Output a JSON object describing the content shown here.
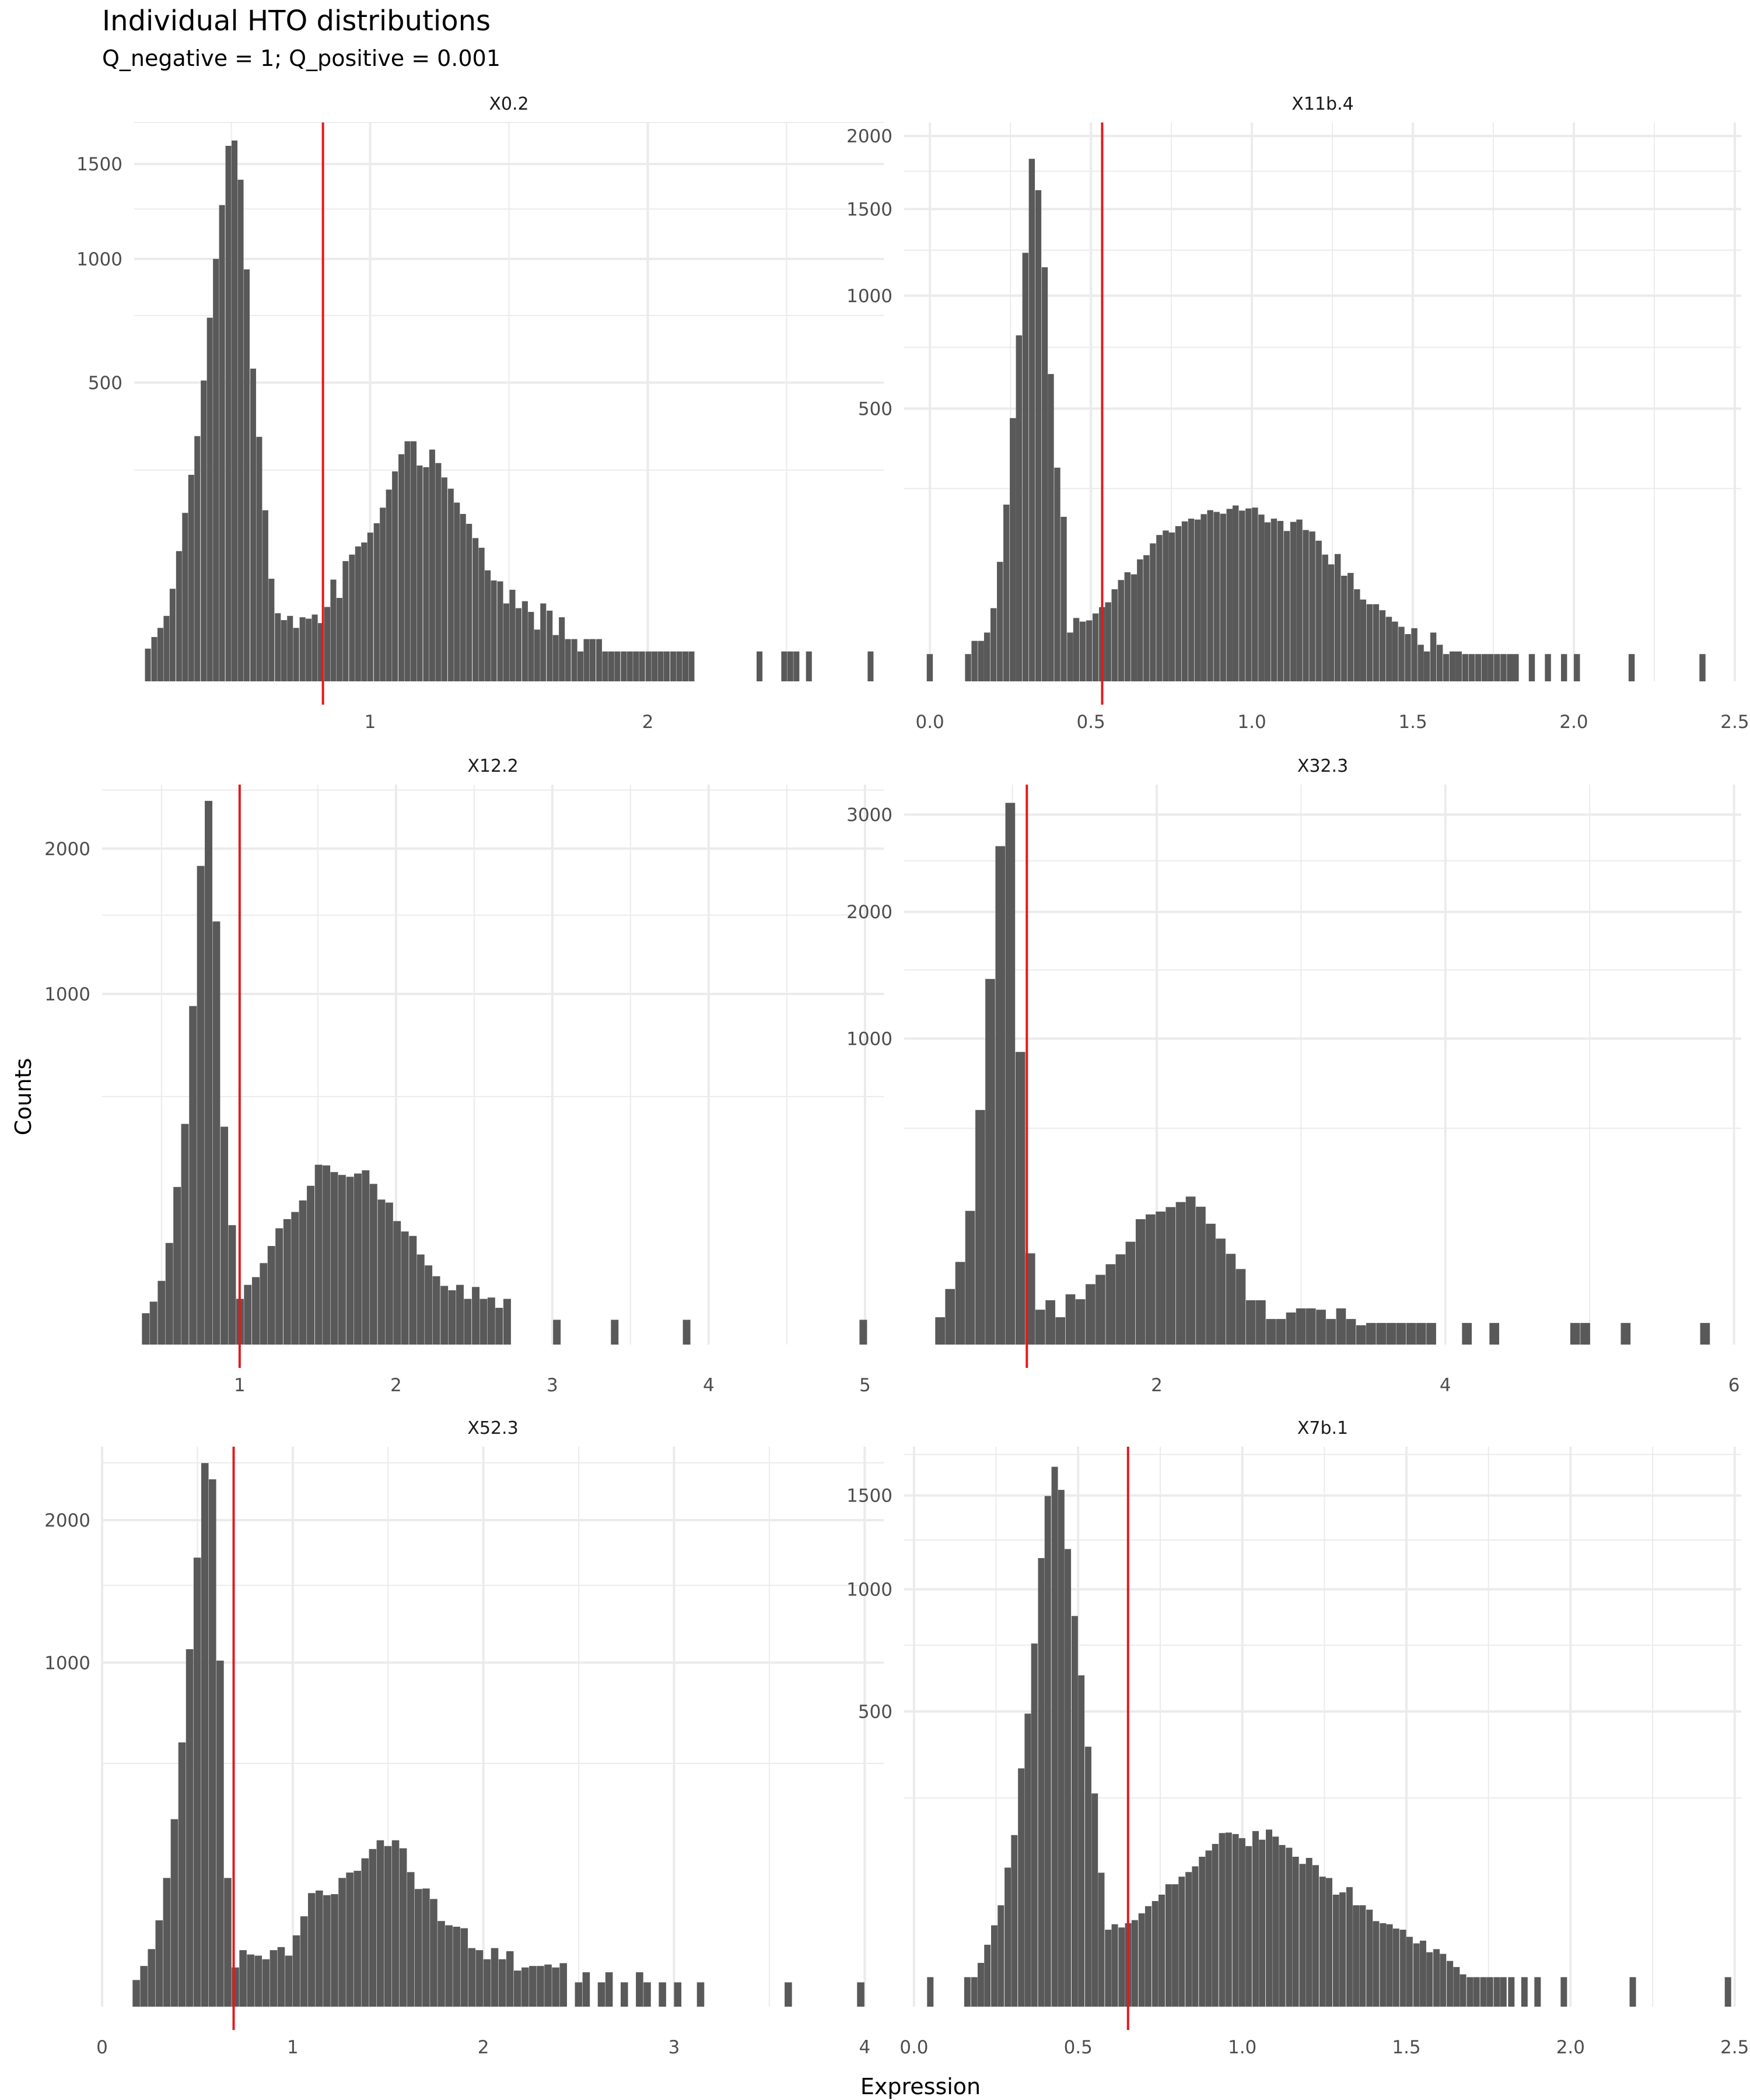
{
  "title": "Individual HTO distributions",
  "subtitle": "Q_negative = 1; Q_positive = 0.001",
  "xlabel": "Expression",
  "ylabel": "Counts",
  "colors": {
    "bar": "#595959",
    "threshold": "#e31a1c",
    "grid": "#ebebeb",
    "text": "#4d4d4d"
  },
  "chart_data": [
    {
      "type": "bar",
      "title": "X0.2",
      "scale": "sqrt",
      "xlim": [
        0.15,
        2.85
      ],
      "ylim": [
        0,
        1750
      ],
      "xticks": [
        1,
        2
      ],
      "yticks": [
        500,
        1000,
        1500
      ],
      "binwidth": 0.0222,
      "threshold": 0.83,
      "x": [
        0.2,
        0.223,
        0.245,
        0.267,
        0.289,
        0.312,
        0.334,
        0.356,
        0.378,
        0.401,
        0.423,
        0.445,
        0.467,
        0.49,
        0.512,
        0.534,
        0.556,
        0.579,
        0.601,
        0.623,
        0.645,
        0.668,
        0.69,
        0.712,
        0.734,
        0.757,
        0.779,
        0.801,
        0.823,
        0.846,
        0.868,
        0.89,
        0.912,
        0.935,
        0.957,
        0.979,
        1.001,
        1.024,
        1.046,
        1.068,
        1.09,
        1.113,
        1.135,
        1.157,
        1.179,
        1.202,
        1.224,
        1.246,
        1.268,
        1.291,
        1.313,
        1.335,
        1.357,
        1.38,
        1.402,
        1.424,
        1.446,
        1.469,
        1.491,
        1.513,
        1.535,
        1.558,
        1.58,
        1.602,
        1.624,
        1.647,
        1.669,
        1.691,
        1.713,
        1.736,
        1.758,
        1.78,
        1.802,
        1.825,
        1.847,
        1.869,
        1.891,
        1.914,
        1.936,
        1.958,
        1.98,
        2.003,
        2.025,
        2.047,
        2.069,
        2.092,
        2.114,
        2.136,
        2.158,
        2.403,
        2.492,
        2.514,
        2.536,
        2.581,
        2.803
      ],
      "values": [
        6,
        11,
        16,
        24,
        48,
        95,
        159,
        239,
        337,
        507,
        741,
        1000,
        1271,
        1607,
        1639,
        1410,
        951,
        548,
        335,
        164,
        59,
        26,
        21,
        24,
        16,
        23,
        22,
        25,
        19,
        31,
        58,
        39,
        81,
        90,
        102,
        108,
        124,
        140,
        169,
        206,
        247,
        289,
        323,
        323,
        261,
        257,
        301,
        267,
        233,
        208,
        179,
        157,
        139,
        115,
        100,
        69,
        57,
        56,
        34,
        47,
        30,
        36,
        27,
        15,
        34,
        28,
        12,
        23,
        10,
        10,
        5,
        10,
        10,
        10,
        5,
        5,
        5,
        5,
        5,
        5,
        5,
        5,
        5,
        5,
        5,
        5,
        5,
        5,
        5,
        5,
        5,
        5,
        5,
        5,
        5
      ]
    },
    {
      "type": "bar",
      "title": "X11b.4",
      "scale": "sqrt",
      "xlim": [
        -0.08,
        2.52
      ],
      "ylim": [
        0,
        2100
      ],
      "xticks": [
        0,
        0.5,
        1,
        1.5,
        2,
        2.5
      ],
      "ytickLabels": [
        "0.0",
        "0.5",
        "1.0",
        "1.5",
        "2.0",
        "2.5"
      ],
      "yticks": [
        500,
        1000,
        1500,
        2000
      ],
      "binwidth": 0.0198,
      "threshold": 0.535,
      "x": [
        0.0,
        0.119,
        0.139,
        0.159,
        0.178,
        0.198,
        0.218,
        0.238,
        0.258,
        0.277,
        0.297,
        0.317,
        0.337,
        0.357,
        0.376,
        0.396,
        0.416,
        0.436,
        0.455,
        0.475,
        0.495,
        0.515,
        0.535,
        0.554,
        0.574,
        0.594,
        0.614,
        0.634,
        0.653,
        0.673,
        0.693,
        0.713,
        0.733,
        0.752,
        0.772,
        0.792,
        0.812,
        0.832,
        0.851,
        0.871,
        0.891,
        0.911,
        0.931,
        0.95,
        0.97,
        0.99,
        1.01,
        1.03,
        1.049,
        1.069,
        1.089,
        1.109,
        1.129,
        1.148,
        1.168,
        1.188,
        1.208,
        1.228,
        1.247,
        1.267,
        1.287,
        1.307,
        1.327,
        1.346,
        1.366,
        1.386,
        1.406,
        1.426,
        1.445,
        1.465,
        1.485,
        1.505,
        1.525,
        1.544,
        1.564,
        1.584,
        1.604,
        1.624,
        1.643,
        1.663,
        1.683,
        1.703,
        1.723,
        1.742,
        1.762,
        1.782,
        1.802,
        1.82,
        1.87,
        1.92,
        1.97,
        2.01,
        2.18,
        2.4
      ],
      "values": [
        5,
        5,
        11,
        11,
        16,
        36,
        96,
        210,
        466,
        805,
        1235,
        1836,
        1622,
        1153,
        635,
        307,
        182,
        16,
        27,
        24,
        25,
        31,
        37,
        42,
        57,
        69,
        80,
        77,
        100,
        107,
        128,
        144,
        153,
        149,
        162,
        172,
        178,
        176,
        188,
        197,
        193,
        189,
        200,
        208,
        196,
        201,
        203,
        187,
        170,
        178,
        173,
        152,
        171,
        176,
        154,
        151,
        133,
        108,
        92,
        109,
        75,
        79,
        57,
        45,
        40,
        40,
        34,
        28,
        24,
        20,
        15,
        19,
        9,
        6,
        16,
        9,
        5,
        6,
        6,
        5,
        5,
        5,
        5,
        5,
        5,
        5,
        5,
        5,
        5,
        5,
        5,
        5,
        5,
        5
      ]
    },
    {
      "type": "bar",
      "title": "X12.2",
      "scale": "sqrt",
      "xlim": [
        0.12,
        5.12
      ],
      "ylim": [
        0,
        2550
      ],
      "xticks": [
        1,
        2,
        3,
        4,
        5
      ],
      "yticks": [
        1000,
        2000
      ],
      "binwidth": 0.0502,
      "threshold": 1.0,
      "x": [
        0.4,
        0.45,
        0.501,
        0.551,
        0.601,
        0.651,
        0.702,
        0.752,
        0.802,
        0.852,
        0.903,
        0.953,
        1.003,
        1.053,
        1.104,
        1.154,
        1.204,
        1.254,
        1.305,
        1.355,
        1.405,
        1.455,
        1.506,
        1.556,
        1.606,
        1.656,
        1.707,
        1.757,
        1.807,
        1.857,
        1.908,
        1.958,
        2.008,
        2.058,
        2.109,
        2.159,
        2.209,
        2.259,
        2.31,
        2.36,
        2.41,
        2.46,
        2.511,
        2.561,
        2.611,
        2.661,
        2.712,
        3.03,
        3.4,
        3.86,
        4.99
      ],
      "values": [
        8,
        15,
        33,
        84,
        202,
        396,
        932,
        1863,
        2404,
        1456,
        386,
        116,
        17,
        29,
        37,
        54,
        79,
        110,
        128,
        143,
        169,
        205,
        263,
        261,
        242,
        234,
        229,
        238,
        247,
        210,
        171,
        164,
        124,
        104,
        96,
        66,
        51,
        38,
        28,
        24,
        29,
        17,
        27,
        17,
        18,
        11,
        17,
        5,
        5,
        5,
        5
      ]
    },
    {
      "type": "bar",
      "title": "X32.3",
      "scale": "sqrt",
      "xlim": [
        0.25,
        6.05
      ],
      "ylim": [
        0,
        3350
      ],
      "xticks": [
        2,
        4,
        6
      ],
      "yticks": [
        1000,
        2000,
        3000
      ],
      "binwidth": 0.0694,
      "threshold": 1.1,
      "x": [
        0.5,
        0.569,
        0.639,
        0.708,
        0.778,
        0.847,
        0.917,
        0.986,
        1.056,
        1.125,
        1.194,
        1.264,
        1.333,
        1.403,
        1.472,
        1.542,
        1.611,
        1.681,
        1.75,
        1.819,
        1.889,
        1.958,
        2.028,
        2.097,
        2.167,
        2.236,
        2.306,
        2.375,
        2.444,
        2.514,
        2.583,
        2.653,
        2.722,
        2.792,
        2.861,
        2.931,
        3.0,
        3.069,
        3.139,
        3.208,
        3.278,
        3.347,
        3.417,
        3.486,
        3.556,
        3.625,
        3.694,
        3.764,
        3.833,
        3.903,
        4.15,
        4.34,
        4.9,
        4.97,
        5.25,
        5.8
      ],
      "values": [
        8,
        33,
        73,
        191,
        588,
        1428,
        2654,
        3135,
        915,
        89,
        13,
        21,
        8,
        27,
        22,
        39,
        52,
        69,
        87,
        113,
        168,
        181,
        189,
        202,
        217,
        234,
        203,
        156,
        120,
        88,
        61,
        21,
        21,
        7,
        7,
        11,
        14,
        14,
        13,
        7,
        14,
        7,
        4,
        5,
        5,
        5,
        5,
        5,
        5,
        5,
        5,
        5,
        5,
        5,
        5,
        5
      ]
    },
    {
      "type": "bar",
      "title": "X52.3",
      "scale": "sqrt",
      "xlim": [
        0,
        4.1
      ],
      "ylim": [
        0,
        2650
      ],
      "xticks": [
        0,
        1,
        2,
        3,
        4
      ],
      "yticks": [
        1000,
        2000
      ],
      "binwidth": 0.04,
      "threshold": 0.69,
      "x": [
        0.18,
        0.22,
        0.26,
        0.3,
        0.34,
        0.38,
        0.42,
        0.46,
        0.5,
        0.54,
        0.58,
        0.62,
        0.66,
        0.7,
        0.74,
        0.78,
        0.82,
        0.86,
        0.9,
        0.94,
        0.98,
        1.02,
        1.06,
        1.1,
        1.14,
        1.18,
        1.22,
        1.26,
        1.3,
        1.34,
        1.38,
        1.42,
        1.46,
        1.5,
        1.54,
        1.58,
        1.62,
        1.66,
        1.7,
        1.74,
        1.78,
        1.82,
        1.86,
        1.9,
        1.94,
        1.98,
        2.02,
        2.06,
        2.1,
        2.14,
        2.18,
        2.22,
        2.26,
        2.3,
        2.34,
        2.38,
        2.42,
        2.5,
        2.54,
        2.62,
        2.66,
        2.74,
        2.82,
        2.86,
        2.94,
        3.02,
        3.14,
        3.6,
        3.98
      ],
      "values": [
        6,
        14,
        28,
        63,
        140,
        297,
        590,
        1080,
        1704,
        2497,
        2350,
        1012,
        140,
        13,
        27,
        23,
        22,
        19,
        27,
        30,
        22,
        43,
        69,
        109,
        114,
        105,
        107,
        140,
        152,
        156,
        186,
        210,
        234,
        218,
        234,
        212,
        153,
        117,
        118,
        98,
        62,
        56,
        54,
        52,
        29,
        27,
        19,
        29,
        19,
        26,
        11,
        13,
        14,
        14,
        15,
        13,
        16,
        5,
        10,
        5,
        10,
        5,
        10,
        5,
        5,
        5,
        5,
        5,
        5
      ]
    },
    {
      "type": "bar",
      "title": "X7b.1",
      "scale": "sqrt",
      "xlim": [
        -0.03,
        2.52
      ],
      "ylim": [
        0,
        1800
      ],
      "xticks": [
        0,
        0.5,
        1,
        1.5,
        2,
        2.5
      ],
      "ytickLabels": [
        "0.0",
        "0.5",
        "1.0",
        "1.5",
        "2.0",
        "2.5"
      ],
      "yticks": [
        500,
        1000,
        1500
      ],
      "binwidth": 0.0204,
      "threshold": 0.652,
      "x": [
        0.05,
        0.163,
        0.184,
        0.204,
        0.224,
        0.245,
        0.265,
        0.286,
        0.306,
        0.327,
        0.347,
        0.367,
        0.388,
        0.408,
        0.429,
        0.449,
        0.469,
        0.49,
        0.51,
        0.531,
        0.551,
        0.571,
        0.592,
        0.612,
        0.633,
        0.653,
        0.673,
        0.694,
        0.714,
        0.735,
        0.755,
        0.776,
        0.796,
        0.816,
        0.837,
        0.857,
        0.878,
        0.898,
        0.918,
        0.939,
        0.959,
        0.98,
        1.0,
        1.02,
        1.041,
        1.061,
        1.082,
        1.102,
        1.122,
        1.143,
        1.163,
        1.184,
        1.204,
        1.224,
        1.245,
        1.265,
        1.286,
        1.306,
        1.327,
        1.347,
        1.367,
        1.388,
        1.408,
        1.429,
        1.449,
        1.469,
        1.49,
        1.51,
        1.531,
        1.551,
        1.571,
        1.592,
        1.612,
        1.633,
        1.653,
        1.673,
        1.694,
        1.714,
        1.735,
        1.755,
        1.776,
        1.796,
        1.82,
        1.86,
        1.9,
        1.98,
        2.19,
        2.48
      ],
      "values": [
        5,
        5,
        5,
        11,
        22,
        38,
        59,
        111,
        169,
        326,
        493,
        757,
        1155,
        1497,
        1673,
        1533,
        1202,
        876,
        630,
        388,
        261,
        103,
        34,
        39,
        36,
        40,
        43,
        50,
        58,
        64,
        72,
        86,
        86,
        97,
        104,
        113,
        129,
        140,
        152,
        173,
        174,
        171,
        163,
        148,
        177,
        160,
        180,
        166,
        150,
        145,
        129,
        117,
        127,
        115,
        97,
        95,
        72,
        75,
        82,
        59,
        59,
        54,
        42,
        40,
        39,
        35,
        34,
        28,
        23,
        25,
        17,
        19,
        16,
        12,
        9,
        6,
        5,
        5,
        5,
        5,
        5,
        5,
        5,
        5,
        5,
        5,
        5,
        5
      ]
    }
  ]
}
